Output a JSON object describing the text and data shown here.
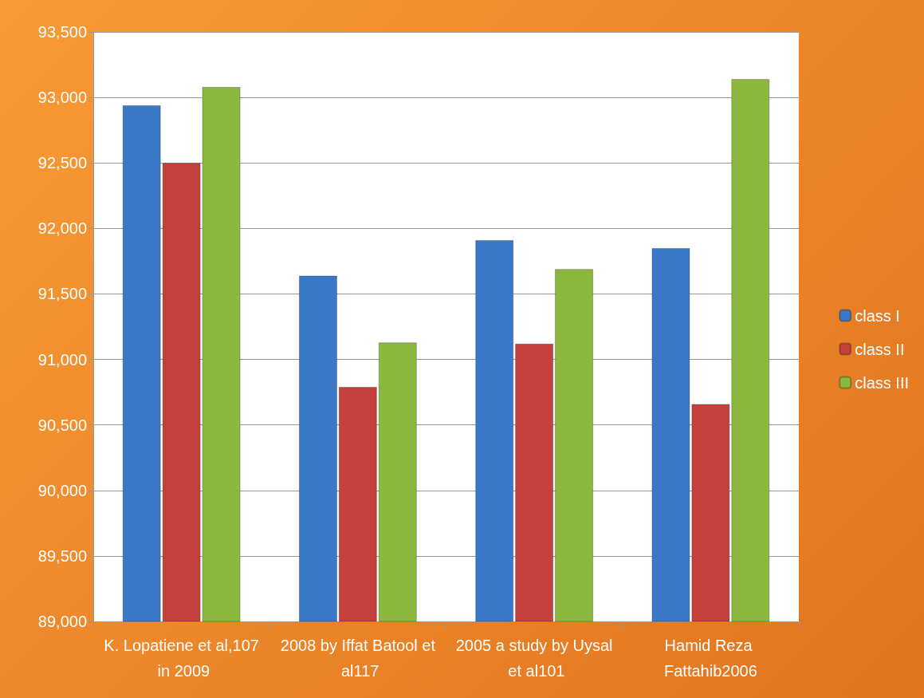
{
  "chart_data": {
    "type": "bar",
    "categories": [
      "K. Lopatiene et al,107 in 2009",
      "2008 by Iffat Batool et al117",
      "2005 a study by Uysal et al101",
      "Hamid Reza Fattahib2006"
    ],
    "series": [
      {
        "name": "class I",
        "color": "#3b78c8",
        "values": [
          92940,
          91640,
          91910,
          91850
        ]
      },
      {
        "name": "class II",
        "color": "#c3403c",
        "values": [
          92500,
          90790,
          91120,
          90660
        ]
      },
      {
        "name": "class III",
        "color": "#8cb83e",
        "values": [
          93080,
          91130,
          91690,
          93140
        ]
      }
    ],
    "ylim": [
      89000,
      93500
    ],
    "yticks": [
      {
        "value": 89000,
        "label": "89,000"
      },
      {
        "value": 89500,
        "label": "89,500"
      },
      {
        "value": 90000,
        "label": "90,000"
      },
      {
        "value": 90500,
        "label": "90,500"
      },
      {
        "value": 91000,
        "label": "91,000"
      },
      {
        "value": 91500,
        "label": "91,500"
      },
      {
        "value": 92000,
        "label": "92,000"
      },
      {
        "value": 92500,
        "label": "92,500"
      },
      {
        "value": 93000,
        "label": "93,000"
      },
      {
        "value": 93500,
        "label": "93,500"
      }
    ],
    "grid": "y",
    "legend": "right"
  }
}
